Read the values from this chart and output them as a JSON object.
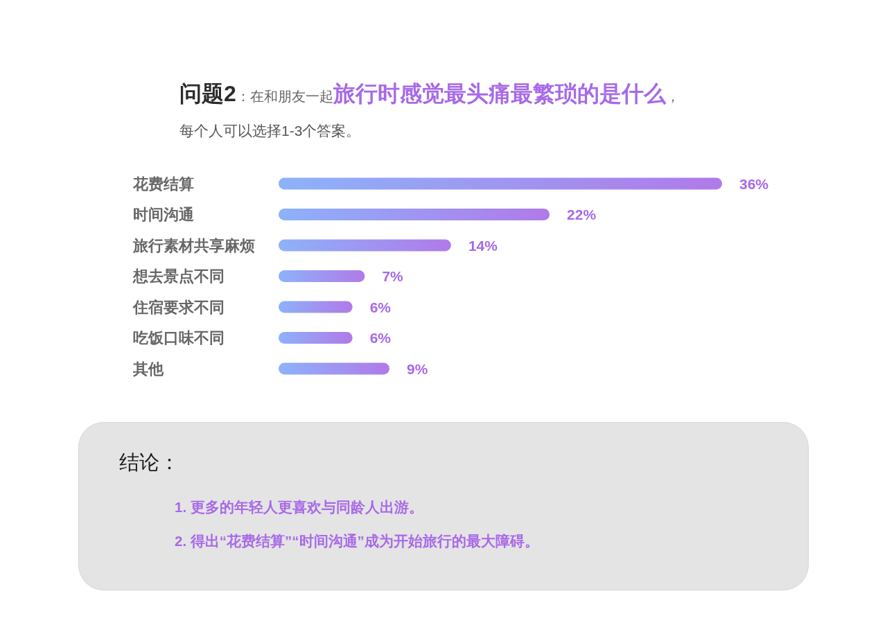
{
  "chart_data": {
    "type": "bar",
    "orientation": "horizontal",
    "title": "**问题2**：在和朋友一起**旅行时感觉最头痛最繁琐的是什么**，",
    "subtitle": "每个人可以选择1-3个答案。",
    "categories": [
      "花费结算",
      "时间沟通",
      "旅行素材共享麻烦",
      "想去景点不同",
      "住宿要求不同",
      "吃饭口味不同",
      "其他"
    ],
    "values": [
      36,
      22,
      14,
      7,
      6,
      6,
      9
    ],
    "value_labels": [
      "36%",
      "22%",
      "14%",
      "7%",
      "6%",
      "6%",
      "9%"
    ],
    "color": "#a095f2",
    "annotations": [
      "结论：",
      "1. 更多的年轻人更喜欢与同龄人出游。",
      "2. 得出“花费结算”“时间沟通”成为开始旅行的最大障碍。"
    ]
  }
}
